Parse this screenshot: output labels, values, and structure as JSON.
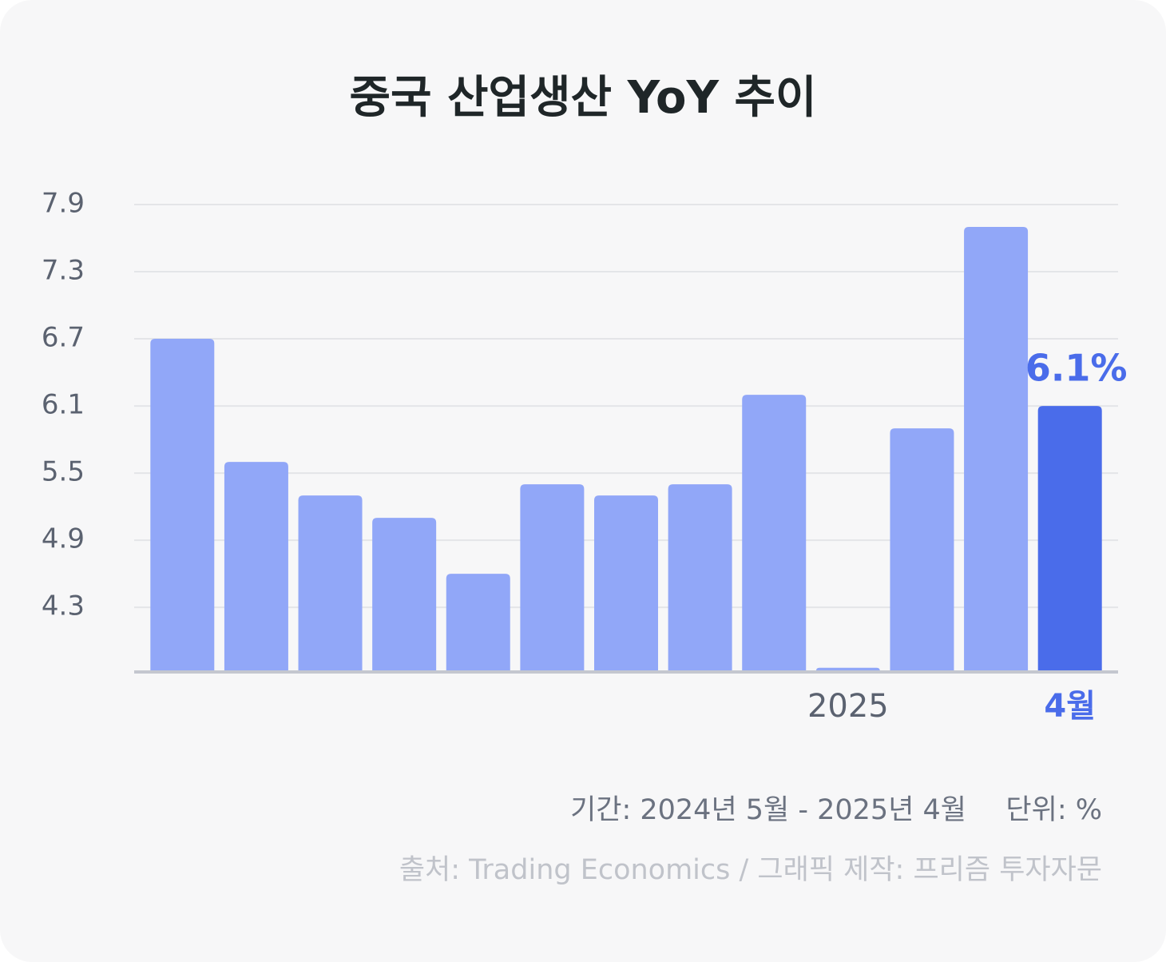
{
  "chart_data": {
    "type": "bar",
    "title": "중국 산업생산 YoY 추이",
    "categories": [
      null,
      null,
      null,
      null,
      null,
      null,
      null,
      null,
      null,
      "2025",
      null,
      null,
      "4월"
    ],
    "values": [
      6.7,
      5.6,
      5.3,
      5.1,
      4.6,
      5.4,
      5.3,
      5.4,
      6.2,
      3.76,
      5.9,
      7.7,
      6.1
    ],
    "value_labels": [
      null,
      null,
      null,
      null,
      null,
      null,
      null,
      null,
      null,
      null,
      null,
      null,
      "6.1%"
    ],
    "color": "#91a7f8",
    "colors": [
      "#91a7f8",
      "#91a7f8",
      "#91a7f8",
      "#91a7f8",
      "#91a7f8",
      "#91a7f8",
      "#91a7f8",
      "#91a7f8",
      "#91a7f8",
      "#91a7f8",
      "#91a7f8",
      "#91a7f8",
      "#4a6cea"
    ],
    "ylim": [
      3.73,
      7.9
    ],
    "yticks": [
      4.3,
      4.9,
      5.5,
      6.1,
      6.7,
      7.3,
      7.9
    ],
    "grid": true,
    "period": "기간: 2024년 5월 - 2025년 4월",
    "unit": "단위: %",
    "source": "출처: Trading Economics / 그래픽 제작: 프리즘 투자자문"
  }
}
